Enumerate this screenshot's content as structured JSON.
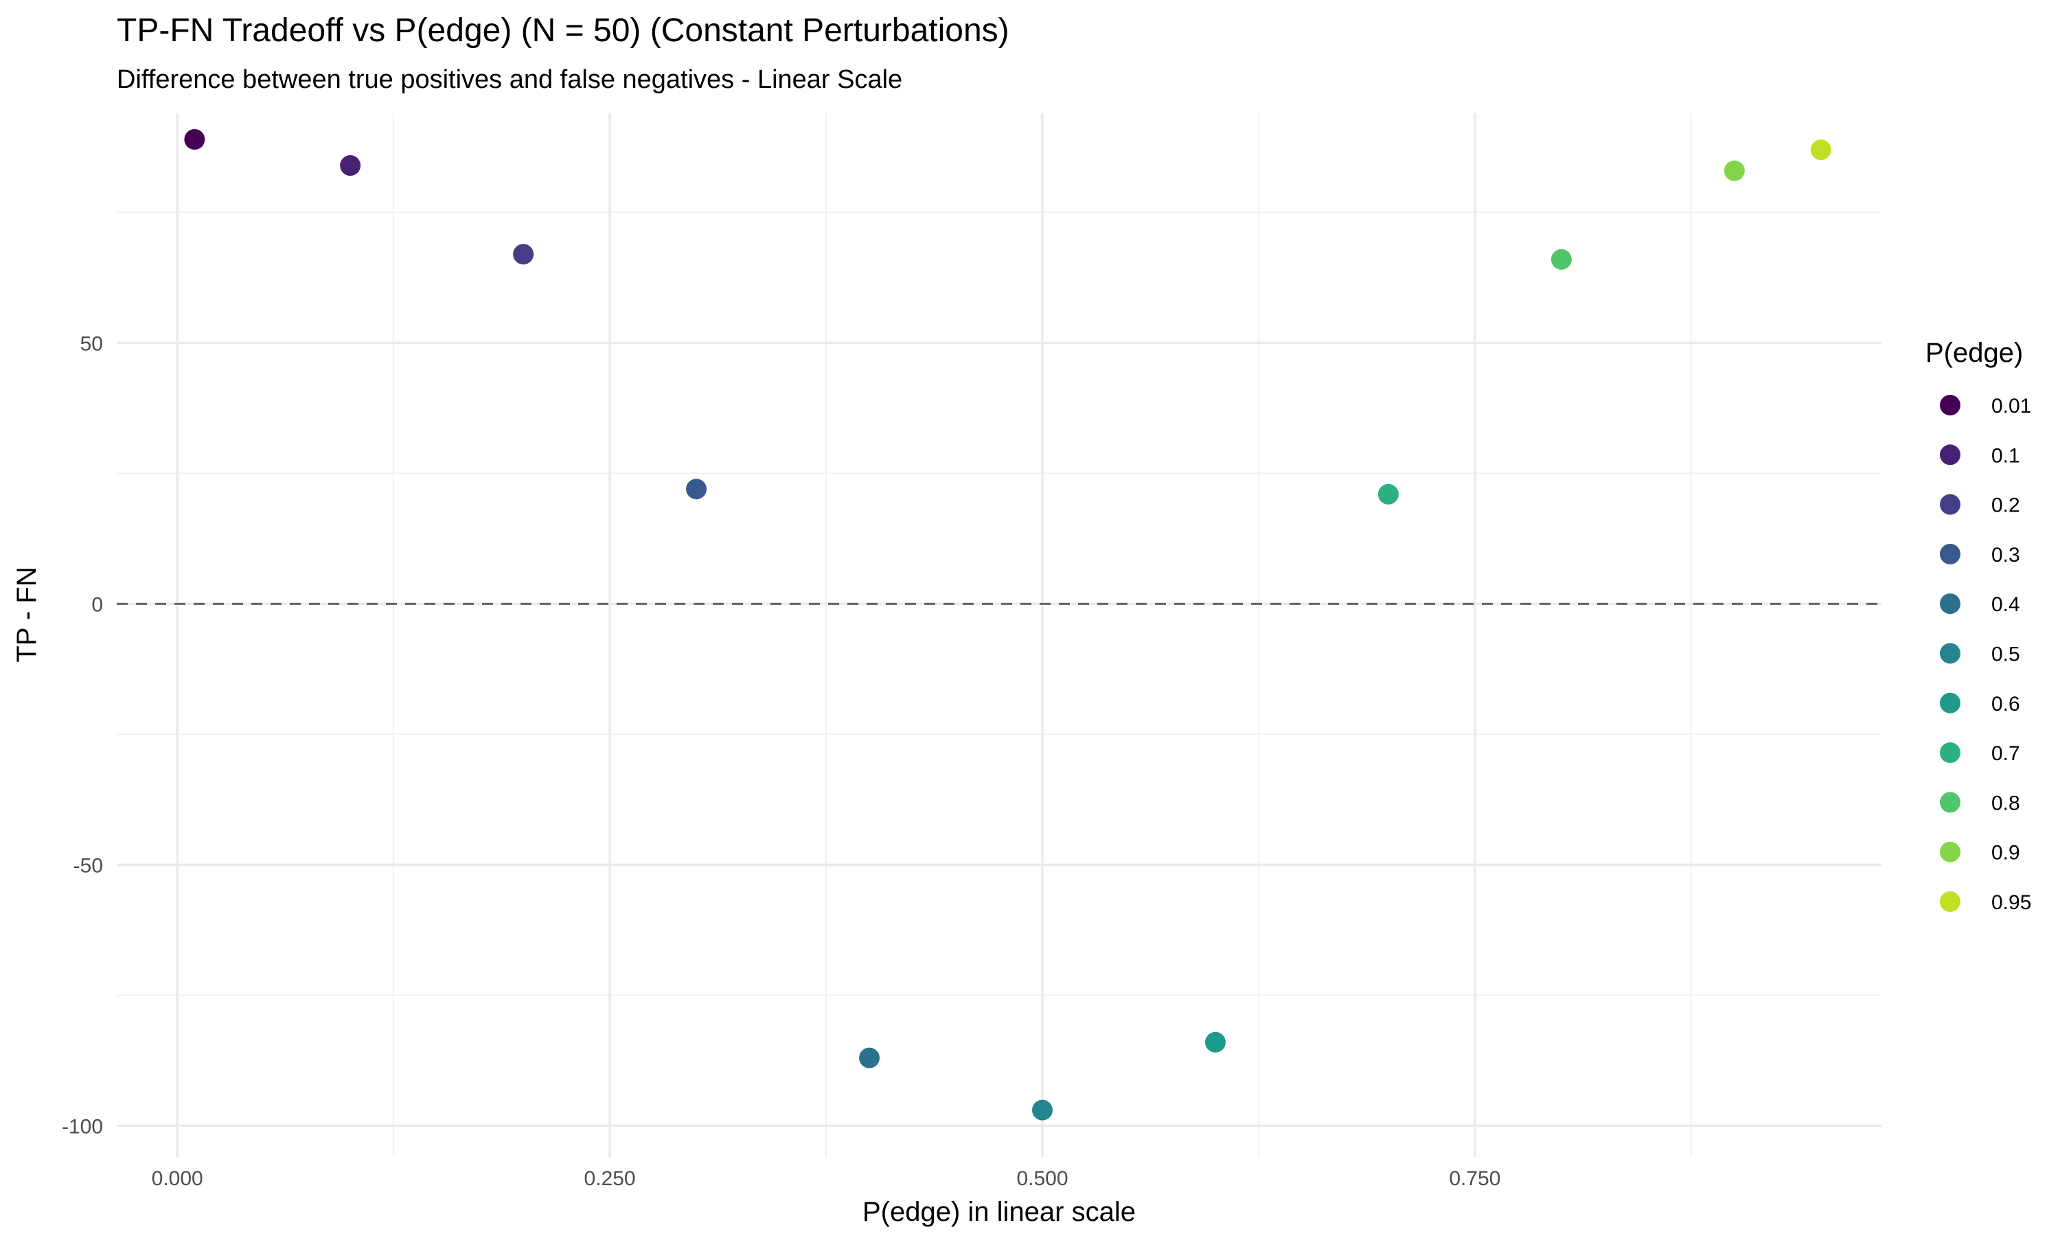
{
  "chart_data": {
    "type": "scatter",
    "title": "TP-FN Tradeoff vs P(edge) (N = 50) (Constant Perturbations)",
    "subtitle": "Difference between true positives and false negatives - Linear Scale",
    "xlabel": "P(edge) in linear scale",
    "ylabel": "TP - FN",
    "xlim": [
      -0.035,
      0.985
    ],
    "ylim": [
      -106,
      94
    ],
    "x_ticks": [
      0,
      0.25,
      0.5,
      0.75
    ],
    "x_tick_labels": [
      "0.000",
      "0.250",
      "0.500",
      "0.750"
    ],
    "y_ticks": [
      -100,
      -50,
      0,
      50
    ],
    "y_tick_labels": [
      "-100",
      "-50",
      "0",
      "50"
    ],
    "x_minor_ticks": [
      0.125,
      0.375,
      0.625,
      0.875
    ],
    "y_minor_ticks": [
      -75,
      -25,
      25,
      75
    ],
    "grid": true,
    "reference_line": {
      "y": 0,
      "style": "dashed"
    },
    "legend": {
      "title": "P(edge)",
      "position": "right"
    },
    "points": [
      {
        "x": 0.01,
        "y": 89,
        "group": "0.01",
        "color": "#440154"
      },
      {
        "x": 0.1,
        "y": 84,
        "group": "0.1",
        "color": "#482173"
      },
      {
        "x": 0.2,
        "y": 67,
        "group": "0.2",
        "color": "#433E85"
      },
      {
        "x": 0.3,
        "y": 22,
        "group": "0.3",
        "color": "#38598C"
      },
      {
        "x": 0.4,
        "y": -87,
        "group": "0.4",
        "color": "#2D708E"
      },
      {
        "x": 0.5,
        "y": -97,
        "group": "0.5",
        "color": "#25858E"
      },
      {
        "x": 0.6,
        "y": -84,
        "group": "0.6",
        "color": "#1E9B8A"
      },
      {
        "x": 0.7,
        "y": 21,
        "group": "0.7",
        "color": "#2BB07F"
      },
      {
        "x": 0.8,
        "y": 66,
        "group": "0.8",
        "color": "#51C56A"
      },
      {
        "x": 0.9,
        "y": 83,
        "group": "0.9",
        "color": "#85D54A"
      },
      {
        "x": 0.95,
        "y": 87,
        "group": "0.95",
        "color": "#C2DF23"
      }
    ]
  }
}
